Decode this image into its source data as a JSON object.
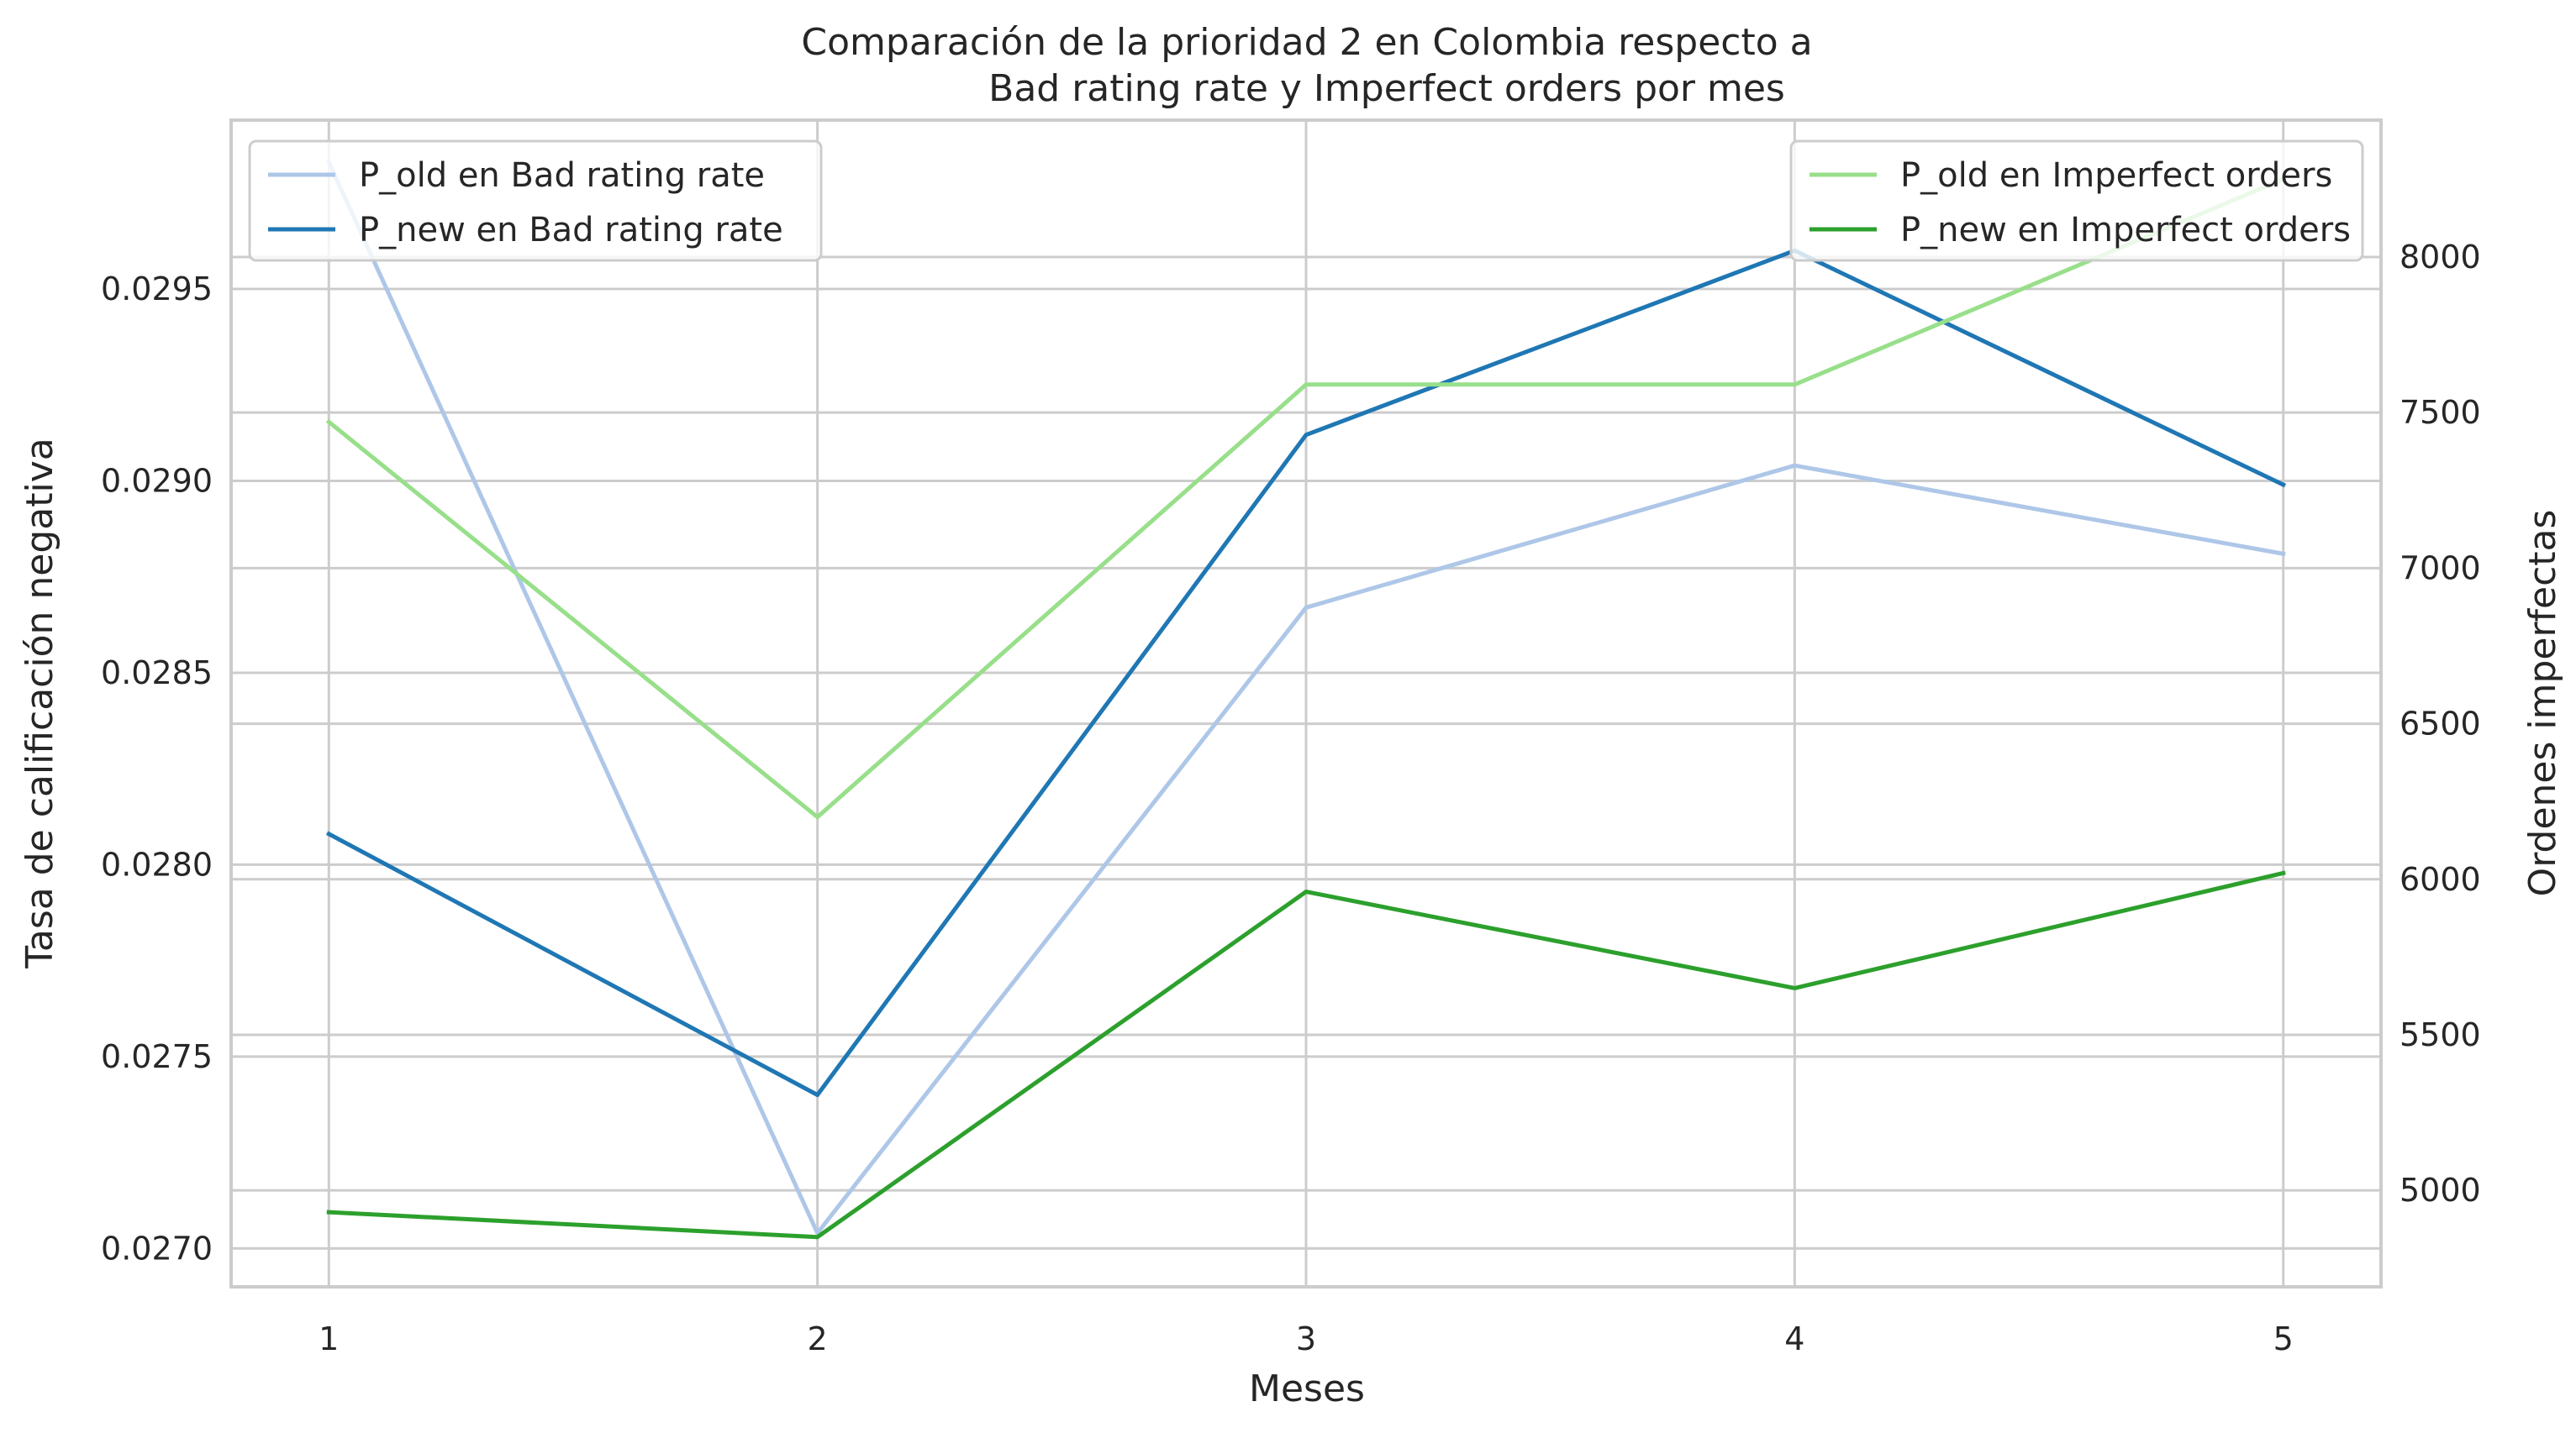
{
  "chart_data": {
    "type": "line",
    "title_line1": "Comparación de la prioridad 2 en Colombia respecto a",
    "title_line2": "Bad rating rate y Imperfect orders por mes",
    "xlabel": "Meses",
    "ylabel_left": "Tasa de calificación negativa",
    "ylabel_right": "Ordenes imperfectas",
    "x": [
      1,
      2,
      3,
      4,
      5
    ],
    "x_ticks": [
      "1",
      "2",
      "3",
      "4",
      "5"
    ],
    "xlim": [
      0.8,
      5.2
    ],
    "left_axis": {
      "ylim": [
        0.0269,
        0.02994
      ],
      "ticks": [
        0.027,
        0.0275,
        0.028,
        0.0285,
        0.029,
        0.0295
      ],
      "tick_labels": [
        "0.0270",
        "0.0275",
        "0.0280",
        "0.0285",
        "0.0290",
        "0.0295"
      ]
    },
    "right_axis": {
      "ylim": [
        4690,
        8440
      ],
      "ticks": [
        5000,
        5500,
        6000,
        6500,
        7000,
        7500,
        8000
      ],
      "tick_labels": [
        "5000",
        "5500",
        "6000",
        "6500",
        "7000",
        "7500",
        "8000"
      ]
    },
    "grid": true,
    "series": [
      {
        "name": "P_old en Bad rating rate",
        "axis": "left",
        "color": "#aec7e8",
        "values": [
          0.02983,
          0.02704,
          0.02867,
          0.02904,
          0.02881
        ]
      },
      {
        "name": "P_new en Bad rating rate",
        "axis": "left",
        "color": "#1f77b4",
        "values": [
          0.02808,
          0.0274,
          0.02912,
          0.0296,
          0.02899
        ]
      },
      {
        "name": "P_old en Imperfect orders",
        "axis": "right",
        "color": "#98df8a",
        "values": [
          7470,
          6200,
          7590,
          7590,
          8250
        ]
      },
      {
        "name": "P_new en Imperfect orders",
        "axis": "right",
        "color": "#2ca02c",
        "values": [
          4930,
          4850,
          5960,
          5650,
          6020
        ]
      }
    ],
    "legends": [
      {
        "placement": "top-left",
        "series": [
          0,
          1
        ]
      },
      {
        "placement": "top-right",
        "series": [
          2,
          3
        ]
      }
    ]
  }
}
